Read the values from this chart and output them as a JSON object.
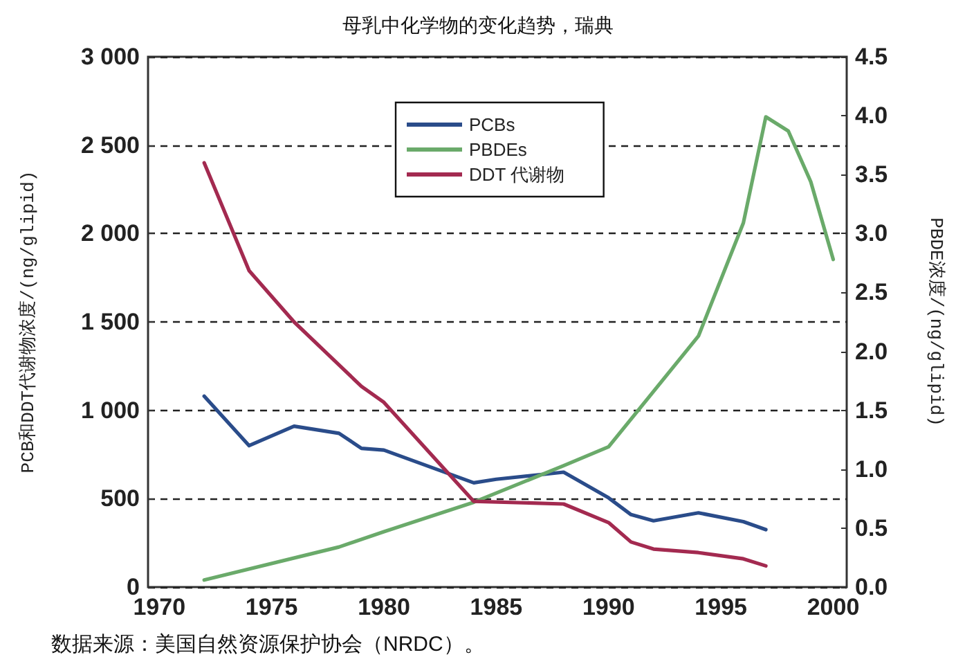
{
  "chart_data": {
    "type": "line",
    "title": "母乳中化学物的变化趋势，瑞典",
    "ylabel": "PCB和DDT代谢物浓度/(ng/glipid)",
    "y2label": "PBDE浓度/(ng/glipid)",
    "annotations": [
      "数据来源：美国自然资源保护协会（NRDC）。"
    ],
    "xlim": [
      1969.5,
      2000.6
    ],
    "xticks": [
      1970,
      1975,
      1980,
      1985,
      1990,
      1995,
      2000
    ],
    "ylim": [
      0,
      3000
    ],
    "yticks": [
      0,
      500,
      {
        "value": 1000,
        "label": "1 000"
      },
      {
        "value": 1500,
        "label": "1 500"
      },
      {
        "value": 2000,
        "label": "2 000"
      },
      {
        "value": 2500,
        "label": "2 500"
      },
      {
        "value": 3000,
        "label": "3 000"
      }
    ],
    "y2lim": [
      0,
      4.5
    ],
    "y2ticks": [
      {
        "value": 0,
        "label": "0.0"
      },
      0.5,
      {
        "value": 1,
        "label": "1.0"
      },
      1.5,
      {
        "value": 2,
        "label": "2.0"
      },
      2.5,
      {
        "value": 3,
        "label": "3.0"
      },
      3.5,
      {
        "value": 4,
        "label": "4.0"
      },
      4.5
    ],
    "grid": "y",
    "legend": "top",
    "marker": "none",
    "line_style": "solid",
    "series": [
      {
        "name": "PCBs",
        "color": "#2a4c8a",
        "x": [
          1972,
          1974,
          1976,
          1978,
          1979,
          1980,
          1984,
          1985,
          1988,
          1990,
          1991,
          1992,
          1994,
          1996,
          1997
        ],
        "values": [
          1080,
          800,
          910,
          870,
          785,
          775,
          590,
          610,
          650,
          505,
          410,
          375,
          420,
          370,
          325
        ]
      },
      {
        "name": "PBDEs",
        "color": "#6aaa6a",
        "axis": "y2",
        "x": [
          1972,
          1978,
          1980,
          1984,
          1988,
          1990,
          1994,
          1996,
          1997,
          1998,
          1999,
          2000
        ],
        "values": [
          0.06,
          0.34,
          0.47,
          0.72,
          1.03,
          1.19,
          2.13,
          3.09,
          3.99,
          3.87,
          3.44,
          2.78
        ]
      },
      {
        "name": "DDT 代谢物",
        "color": "#a32a50",
        "x": [
          1972,
          1974,
          1976,
          1979,
          1980,
          1984,
          1988,
          1990,
          1991,
          1992,
          1994,
          1996,
          1997
        ],
        "values": [
          2400,
          1790,
          1500,
          1135,
          1045,
          485,
          470,
          365,
          255,
          215,
          195,
          160,
          120
        ]
      }
    ]
  }
}
